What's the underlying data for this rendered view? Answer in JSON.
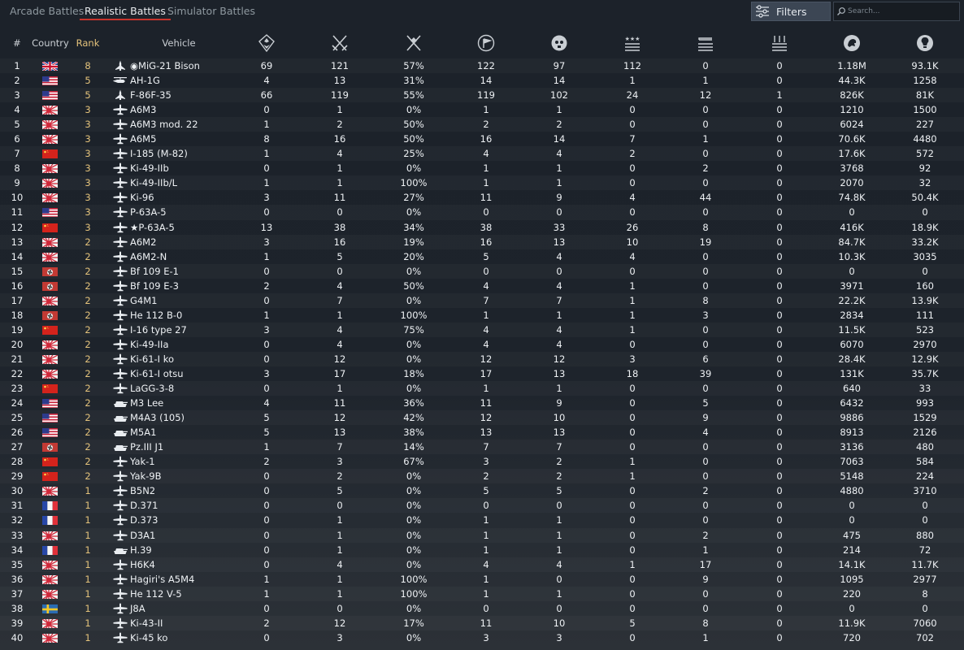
{
  "tabs": [
    "Arcade Battles",
    "Realistic Battles",
    "Simulator Battles"
  ],
  "active_tab": "Realistic Battles",
  "filters_label": "Filters",
  "search_placeholder": "Search...",
  "colors": {
    "accent_red": "#c8342c",
    "rank_gold": "#e3c27b"
  },
  "headers": {
    "index": "#",
    "country": "Country",
    "rank": "Rank",
    "vehicle": "Vehicle",
    "stat_icons": [
      "victories-icon",
      "battles-icon",
      "win-rate-icon",
      "respawns-icon",
      "deaths-icon",
      "air-kills-icon",
      "ground-kills-icon",
      "naval-kills-icon",
      "lions-icon",
      "research-points-icon"
    ]
  },
  "rows": [
    {
      "idx": "1",
      "country": "uk",
      "rank": "8",
      "type": "jet",
      "prefix": "◉",
      "name": "MiG-21 Bison",
      "stats": [
        "69",
        "121",
        "57%",
        "122",
        "97",
        "112",
        "0",
        "0",
        "1.18M",
        "93.1K"
      ]
    },
    {
      "idx": "2",
      "country": "usa",
      "rank": "5",
      "type": "heli",
      "prefix": "",
      "name": "AH-1G",
      "stats": [
        "4",
        "13",
        "31%",
        "14",
        "14",
        "1",
        "1",
        "0",
        "44.3K",
        "1258"
      ]
    },
    {
      "idx": "3",
      "country": "usa",
      "rank": "5",
      "type": "jet",
      "prefix": "",
      "name": "F-86F-35",
      "stats": [
        "66",
        "119",
        "55%",
        "119",
        "102",
        "24",
        "12",
        "1",
        "826K",
        "81K"
      ]
    },
    {
      "idx": "4",
      "country": "japan",
      "rank": "3",
      "type": "plane",
      "prefix": "",
      "name": "A6M3",
      "stats": [
        "0",
        "1",
        "0%",
        "1",
        "1",
        "0",
        "0",
        "0",
        "1210",
        "1500"
      ]
    },
    {
      "idx": "5",
      "country": "japan",
      "rank": "3",
      "type": "plane",
      "prefix": "",
      "name": "A6M3 mod. 22",
      "stats": [
        "1",
        "2",
        "50%",
        "2",
        "2",
        "0",
        "0",
        "0",
        "6024",
        "227"
      ]
    },
    {
      "idx": "6",
      "country": "japan",
      "rank": "3",
      "type": "plane",
      "prefix": "",
      "name": "A6M5",
      "stats": [
        "8",
        "16",
        "50%",
        "16",
        "14",
        "7",
        "1",
        "0",
        "70.6K",
        "4480"
      ]
    },
    {
      "idx": "7",
      "country": "china",
      "rank": "3",
      "type": "plane",
      "prefix": "",
      "name": "I-185 (M-82)",
      "stats": [
        "1",
        "4",
        "25%",
        "4",
        "4",
        "2",
        "0",
        "0",
        "17.6K",
        "572"
      ]
    },
    {
      "idx": "8",
      "country": "japan",
      "rank": "3",
      "type": "plane",
      "prefix": "",
      "name": "Ki-49-IIb",
      "stats": [
        "0",
        "1",
        "0%",
        "1",
        "1",
        "0",
        "2",
        "0",
        "3768",
        "92"
      ]
    },
    {
      "idx": "9",
      "country": "japan",
      "rank": "3",
      "type": "plane",
      "prefix": "",
      "name": "Ki-49-IIb/L",
      "stats": [
        "1",
        "1",
        "100%",
        "1",
        "1",
        "0",
        "0",
        "0",
        "2070",
        "32"
      ]
    },
    {
      "idx": "10",
      "country": "japan",
      "rank": "3",
      "type": "plane",
      "prefix": "",
      "name": "Ki-96",
      "stats": [
        "3",
        "11",
        "27%",
        "11",
        "9",
        "4",
        "44",
        "0",
        "74.8K",
        "50.4K"
      ]
    },
    {
      "idx": "11",
      "country": "usa",
      "rank": "3",
      "type": "plane",
      "prefix": "",
      "name": "P-63A-5",
      "stats": [
        "0",
        "0",
        "0%",
        "0",
        "0",
        "0",
        "0",
        "0",
        "0",
        "0"
      ]
    },
    {
      "idx": "12",
      "country": "china",
      "rank": "3",
      "type": "plane",
      "prefix": "★",
      "name": "P-63A-5",
      "stats": [
        "13",
        "38",
        "34%",
        "38",
        "33",
        "26",
        "8",
        "0",
        "416K",
        "18.9K"
      ]
    },
    {
      "idx": "13",
      "country": "japan",
      "rank": "2",
      "type": "plane",
      "prefix": "",
      "name": "A6M2",
      "stats": [
        "3",
        "16",
        "19%",
        "16",
        "13",
        "10",
        "19",
        "0",
        "84.7K",
        "33.2K"
      ]
    },
    {
      "idx": "14",
      "country": "japan",
      "rank": "2",
      "type": "plane",
      "prefix": "",
      "name": "A6M2-N",
      "stats": [
        "1",
        "5",
        "20%",
        "5",
        "4",
        "4",
        "0",
        "0",
        "10.3K",
        "3035"
      ]
    },
    {
      "idx": "15",
      "country": "germany",
      "rank": "2",
      "type": "plane",
      "prefix": "",
      "name": "Bf 109 E-1",
      "stats": [
        "0",
        "0",
        "0%",
        "0",
        "0",
        "0",
        "0",
        "0",
        "0",
        "0"
      ]
    },
    {
      "idx": "16",
      "country": "germany",
      "rank": "2",
      "type": "plane",
      "prefix": "",
      "name": "Bf 109 E-3",
      "stats": [
        "2",
        "4",
        "50%",
        "4",
        "4",
        "1",
        "0",
        "0",
        "3971",
        "160"
      ]
    },
    {
      "idx": "17",
      "country": "japan",
      "rank": "2",
      "type": "plane",
      "prefix": "",
      "name": "G4M1",
      "stats": [
        "0",
        "7",
        "0%",
        "7",
        "7",
        "1",
        "8",
        "0",
        "22.2K",
        "13.9K"
      ]
    },
    {
      "idx": "18",
      "country": "germany",
      "rank": "2",
      "type": "plane",
      "prefix": "",
      "name": "He 112 B-0",
      "stats": [
        "1",
        "1",
        "100%",
        "1",
        "1",
        "1",
        "3",
        "0",
        "2834",
        "111"
      ]
    },
    {
      "idx": "19",
      "country": "china",
      "rank": "2",
      "type": "plane",
      "prefix": "",
      "name": "I-16 type 27",
      "stats": [
        "3",
        "4",
        "75%",
        "4",
        "4",
        "1",
        "0",
        "0",
        "11.5K",
        "523"
      ]
    },
    {
      "idx": "20",
      "country": "japan",
      "rank": "2",
      "type": "plane",
      "prefix": "",
      "name": "Ki-49-IIa",
      "stats": [
        "0",
        "4",
        "0%",
        "4",
        "4",
        "0",
        "0",
        "0",
        "6070",
        "2970"
      ]
    },
    {
      "idx": "21",
      "country": "japan",
      "rank": "2",
      "type": "plane",
      "prefix": "",
      "name": "Ki-61-I ko",
      "stats": [
        "0",
        "12",
        "0%",
        "12",
        "12",
        "3",
        "6",
        "0",
        "28.4K",
        "12.9K"
      ]
    },
    {
      "idx": "22",
      "country": "japan",
      "rank": "2",
      "type": "plane",
      "prefix": "",
      "name": "Ki-61-I otsu",
      "stats": [
        "3",
        "17",
        "18%",
        "17",
        "13",
        "18",
        "39",
        "0",
        "131K",
        "35.7K"
      ]
    },
    {
      "idx": "23",
      "country": "china",
      "rank": "2",
      "type": "plane",
      "prefix": "",
      "name": "LaGG-3-8",
      "stats": [
        "0",
        "1",
        "0%",
        "1",
        "1",
        "0",
        "0",
        "0",
        "640",
        "33"
      ]
    },
    {
      "idx": "24",
      "country": "usa",
      "rank": "2",
      "type": "tank",
      "prefix": "",
      "name": "M3 Lee",
      "stats": [
        "4",
        "11",
        "36%",
        "11",
        "9",
        "0",
        "5",
        "0",
        "6432",
        "993"
      ]
    },
    {
      "idx": "25",
      "country": "usa",
      "rank": "2",
      "type": "tank",
      "prefix": "",
      "name": "M4A3 (105)",
      "stats": [
        "5",
        "12",
        "42%",
        "12",
        "10",
        "0",
        "9",
        "0",
        "9886",
        "1529"
      ]
    },
    {
      "idx": "26",
      "country": "usa",
      "rank": "2",
      "type": "tank",
      "prefix": "",
      "name": "M5A1",
      "stats": [
        "5",
        "13",
        "38%",
        "13",
        "13",
        "0",
        "4",
        "0",
        "8913",
        "2126"
      ]
    },
    {
      "idx": "27",
      "country": "germany",
      "rank": "2",
      "type": "tank",
      "prefix": "",
      "name": "Pz.III J1",
      "stats": [
        "1",
        "7",
        "14%",
        "7",
        "7",
        "0",
        "0",
        "0",
        "3136",
        "480"
      ]
    },
    {
      "idx": "28",
      "country": "china",
      "rank": "2",
      "type": "plane",
      "prefix": "",
      "name": "Yak-1",
      "stats": [
        "2",
        "3",
        "67%",
        "3",
        "2",
        "1",
        "0",
        "0",
        "7063",
        "584"
      ]
    },
    {
      "idx": "29",
      "country": "china",
      "rank": "2",
      "type": "plane",
      "prefix": "",
      "name": "Yak-9B",
      "stats": [
        "0",
        "2",
        "0%",
        "2",
        "2",
        "1",
        "0",
        "0",
        "5148",
        "224"
      ]
    },
    {
      "idx": "30",
      "country": "japan",
      "rank": "1",
      "type": "plane",
      "prefix": "",
      "name": "B5N2",
      "stats": [
        "0",
        "5",
        "0%",
        "5",
        "5",
        "0",
        "2",
        "0",
        "4880",
        "3710"
      ]
    },
    {
      "idx": "31",
      "country": "france",
      "rank": "1",
      "type": "plane",
      "prefix": "",
      "name": "D.371",
      "stats": [
        "0",
        "0",
        "0%",
        "0",
        "0",
        "0",
        "0",
        "0",
        "0",
        "0"
      ]
    },
    {
      "idx": "32",
      "country": "france",
      "rank": "1",
      "type": "plane",
      "prefix": "",
      "name": "D.373",
      "stats": [
        "0",
        "1",
        "0%",
        "1",
        "1",
        "0",
        "0",
        "0",
        "0",
        "0"
      ]
    },
    {
      "idx": "33",
      "country": "japan",
      "rank": "1",
      "type": "plane",
      "prefix": "",
      "name": "D3A1",
      "stats": [
        "0",
        "1",
        "0%",
        "1",
        "1",
        "0",
        "2",
        "0",
        "475",
        "880"
      ]
    },
    {
      "idx": "34",
      "country": "france",
      "rank": "1",
      "type": "tank",
      "prefix": "",
      "name": "H.39",
      "stats": [
        "0",
        "1",
        "0%",
        "1",
        "1",
        "0",
        "1",
        "0",
        "214",
        "72"
      ]
    },
    {
      "idx": "35",
      "country": "japan",
      "rank": "1",
      "type": "plane",
      "prefix": "",
      "name": "H6K4",
      "stats": [
        "0",
        "4",
        "0%",
        "4",
        "4",
        "1",
        "17",
        "0",
        "14.1K",
        "11.7K"
      ]
    },
    {
      "idx": "36",
      "country": "japan",
      "rank": "1",
      "type": "plane",
      "prefix": "",
      "name": "Hagiri's A5M4",
      "stats": [
        "1",
        "1",
        "100%",
        "1",
        "0",
        "0",
        "9",
        "0",
        "1095",
        "2977"
      ]
    },
    {
      "idx": "37",
      "country": "japan",
      "rank": "1",
      "type": "plane",
      "prefix": "",
      "name": "He 112 V-5",
      "stats": [
        "1",
        "1",
        "100%",
        "1",
        "1",
        "0",
        "0",
        "0",
        "220",
        "8"
      ]
    },
    {
      "idx": "38",
      "country": "sweden",
      "rank": "1",
      "type": "plane",
      "prefix": "",
      "name": "J8A",
      "stats": [
        "0",
        "0",
        "0%",
        "0",
        "0",
        "0",
        "0",
        "0",
        "0",
        "0"
      ]
    },
    {
      "idx": "39",
      "country": "japan",
      "rank": "1",
      "type": "plane",
      "prefix": "",
      "name": "Ki-43-II",
      "stats": [
        "2",
        "12",
        "17%",
        "11",
        "10",
        "5",
        "8",
        "0",
        "11.9K",
        "7060"
      ]
    },
    {
      "idx": "40",
      "country": "japan",
      "rank": "1",
      "type": "plane",
      "prefix": "",
      "name": "Ki-45 ko",
      "stats": [
        "0",
        "3",
        "0%",
        "3",
        "3",
        "0",
        "1",
        "0",
        "720",
        "702"
      ]
    }
  ]
}
